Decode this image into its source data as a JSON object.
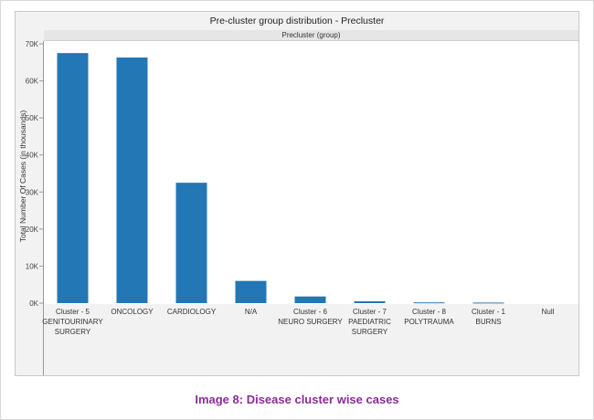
{
  "caption": "Image 8: Disease cluster wise cases",
  "colors": {
    "bar": "#2277b4",
    "panel": "#f2f2f2",
    "caption": "#8e2a9c"
  },
  "chart_data": {
    "type": "bar",
    "title": "Pre-cluster group distribution - Precluster",
    "panel_header": "Precluster (group)",
    "ylabel": "Total Number Of Cases (in thousands)",
    "xlabel": "",
    "ylim": [
      0,
      70000
    ],
    "yticks": [
      {
        "value": 0,
        "label": "0K"
      },
      {
        "value": 10000,
        "label": "10K"
      },
      {
        "value": 20000,
        "label": "20K"
      },
      {
        "value": 30000,
        "label": "30K"
      },
      {
        "value": 40000,
        "label": "40K"
      },
      {
        "value": 50000,
        "label": "50K"
      },
      {
        "value": 60000,
        "label": "60K"
      },
      {
        "value": 70000,
        "label": "70K"
      }
    ],
    "categories": [
      [
        "Cluster - 5",
        "GENITOURINARY",
        "SURGERY"
      ],
      [
        "ONCOLOGY"
      ],
      [
        "CARDIOLOGY"
      ],
      [
        "N/A"
      ],
      [
        "Cluster - 6",
        "NEURO SURGERY"
      ],
      [
        "Cluster - 7",
        "PAEDIATRIC",
        "SURGERY"
      ],
      [
        "Cluster - 8",
        "POLYTRAUMA"
      ],
      [
        "Cluster - 1",
        "BURNS"
      ],
      [
        "Null"
      ]
    ],
    "values": [
      67500,
      66300,
      32500,
      6000,
      1800,
      500,
      200,
      150,
      0
    ],
    "grid": false,
    "legend": "none"
  }
}
